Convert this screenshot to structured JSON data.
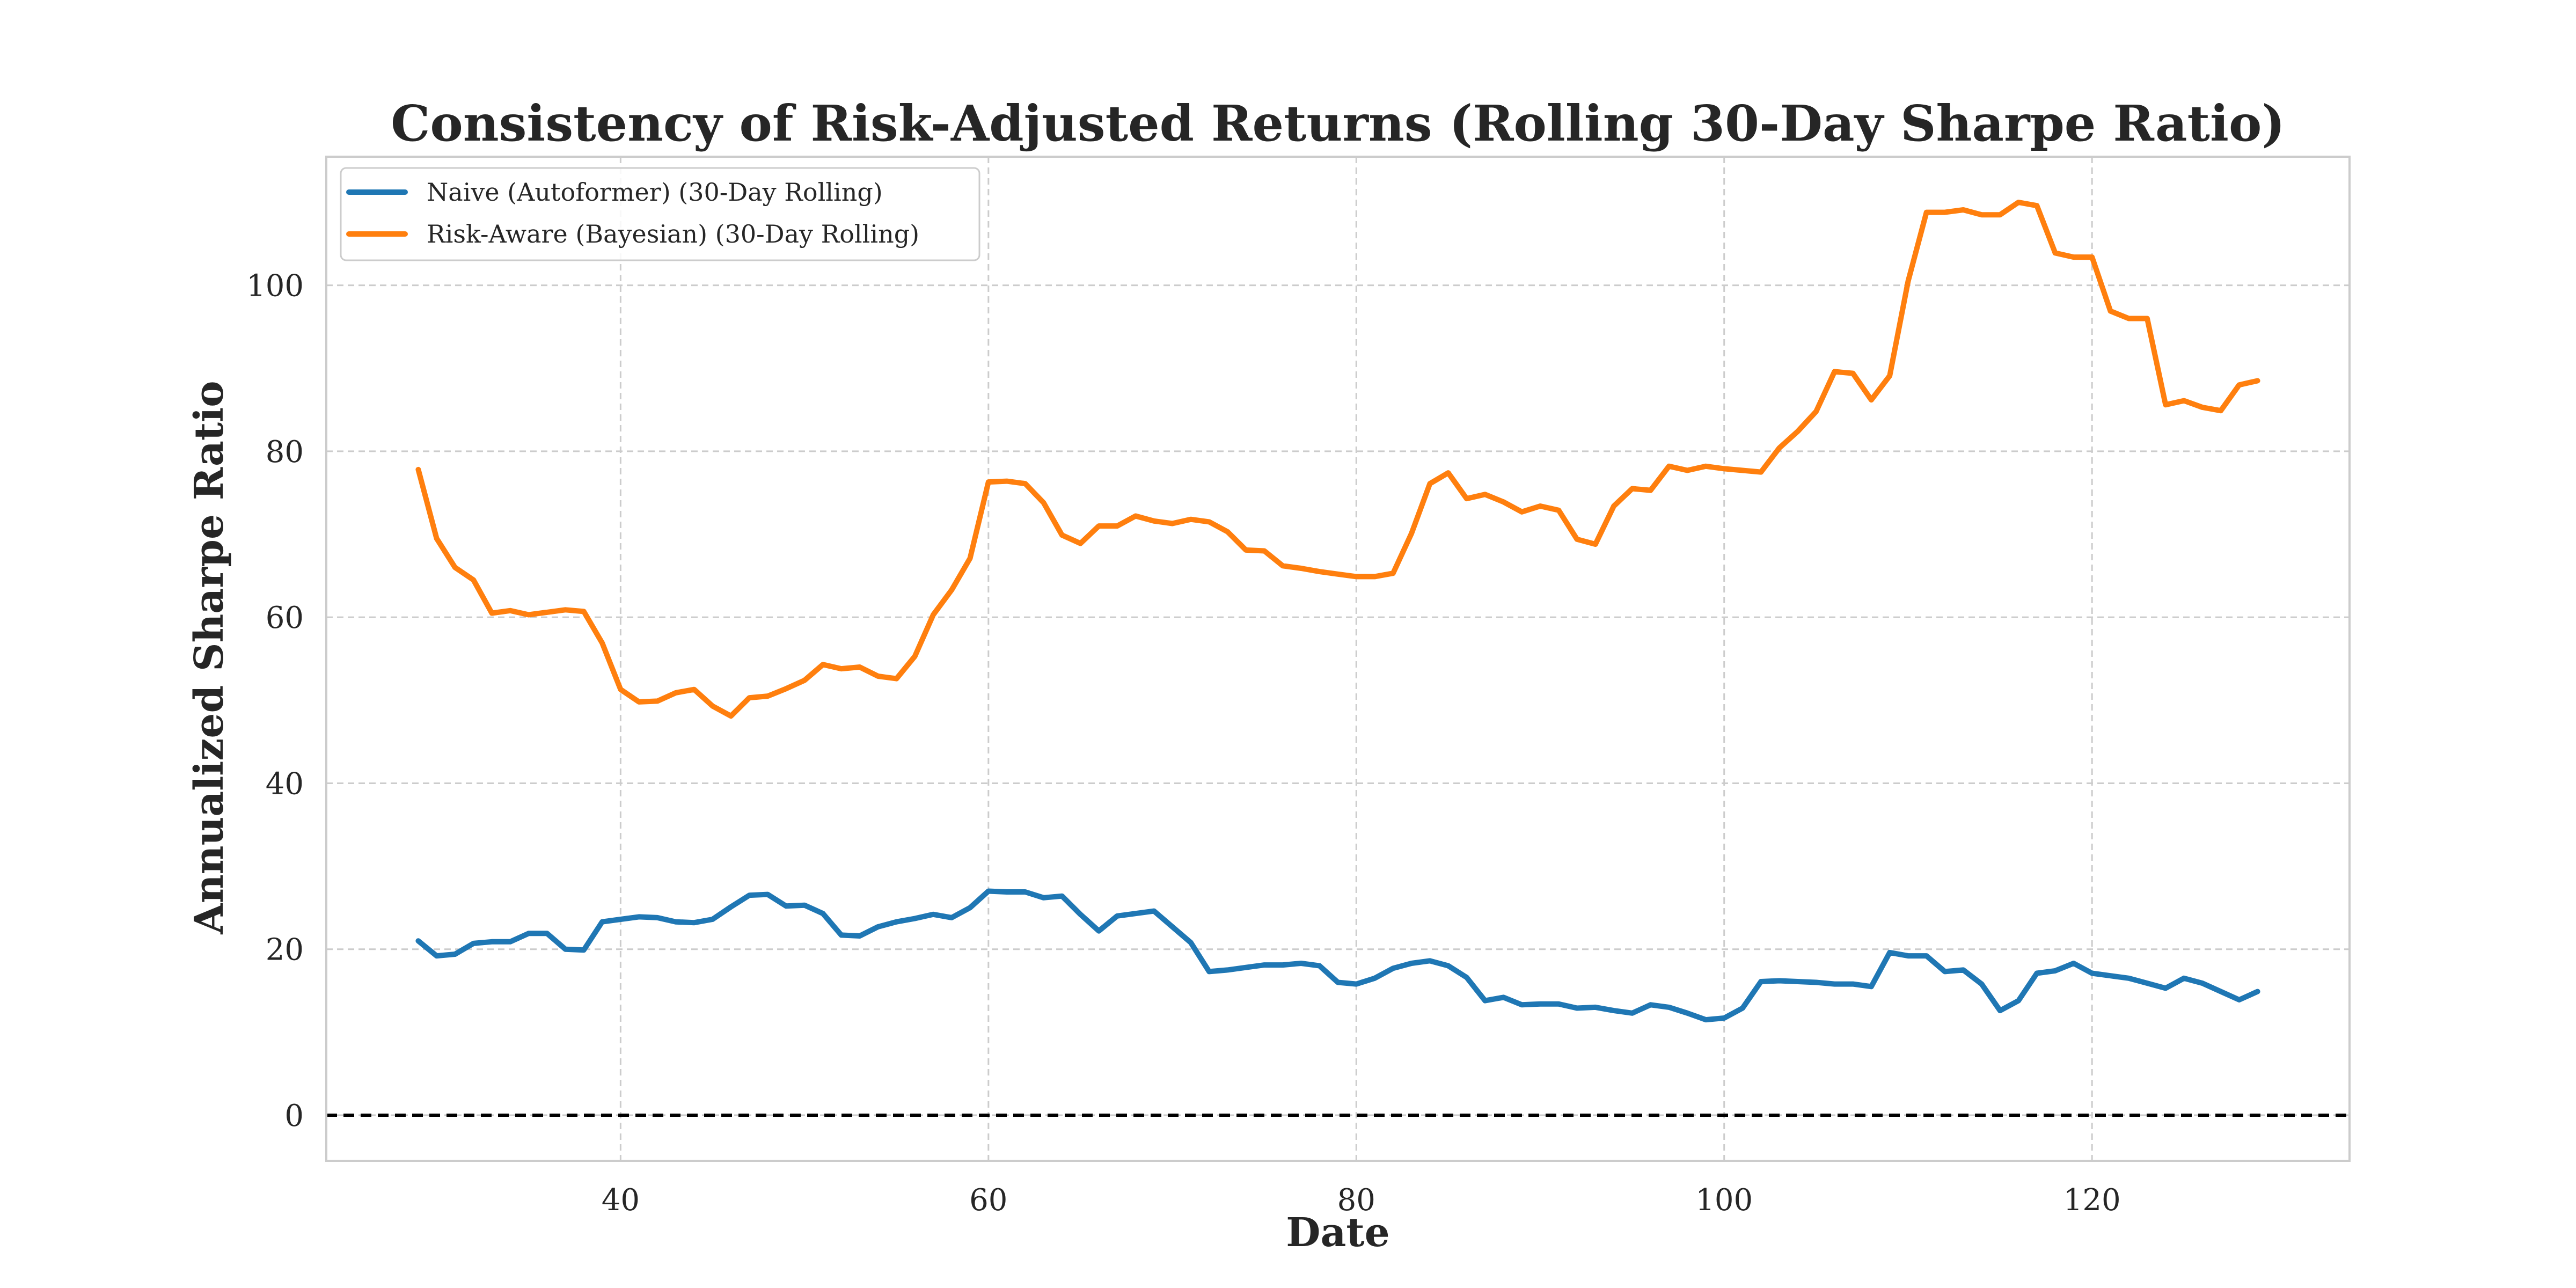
{
  "chart_data": {
    "type": "line",
    "title": "Consistency of Risk-Adjusted Returns (Rolling 30-Day Sharpe Ratio)",
    "xlabel": "Date",
    "ylabel": "Annualized Sharpe Ratio",
    "xlim": [
      24,
      134
    ],
    "ylim": [
      -5.5,
      115.5
    ],
    "xticks": [
      40,
      60,
      80,
      100,
      120
    ],
    "yticks": [
      0,
      20,
      40,
      60,
      80,
      100
    ],
    "grid": true,
    "legend_position": "top-left",
    "reference_line": {
      "y": 0,
      "style": "dashed",
      "color": "#000000"
    },
    "x": [
      29,
      30,
      31,
      32,
      33,
      34,
      35,
      36,
      37,
      38,
      39,
      40,
      41,
      42,
      43,
      44,
      45,
      46,
      47,
      48,
      49,
      50,
      51,
      52,
      53,
      54,
      55,
      56,
      57,
      58,
      59,
      60,
      61,
      62,
      63,
      64,
      65,
      66,
      67,
      68,
      69,
      70,
      71,
      72,
      73,
      74,
      75,
      76,
      77,
      78,
      79,
      80,
      81,
      82,
      83,
      84,
      85,
      86,
      87,
      88,
      89,
      90,
      91,
      92,
      93,
      94,
      95,
      96,
      97,
      98,
      99,
      100,
      101,
      102,
      103,
      104,
      105,
      106,
      107,
      108,
      109,
      110,
      111,
      112,
      113,
      114,
      115,
      116,
      117,
      118,
      119,
      120,
      121,
      122,
      123,
      124,
      125,
      126,
      127,
      128,
      129
    ],
    "series": [
      {
        "name": "Naive (Autoformer) (30-Day Rolling)",
        "color": "#1f77b4",
        "values": [
          21.0,
          19.2,
          19.4,
          20.7,
          20.9,
          20.9,
          21.9,
          21.9,
          20.0,
          19.9,
          23.3,
          23.6,
          23.9,
          23.8,
          23.3,
          23.2,
          23.6,
          25.1,
          26.5,
          26.6,
          25.2,
          25.3,
          24.3,
          21.7,
          21.6,
          22.7,
          23.3,
          23.7,
          24.2,
          23.8,
          25.0,
          27.0,
          26.9,
          26.9,
          26.2,
          26.4,
          24.2,
          22.2,
          24.0,
          24.3,
          24.6,
          22.7,
          20.8,
          17.3,
          17.5,
          17.8,
          18.1,
          18.1,
          18.3,
          18.0,
          16.0,
          15.8,
          16.5,
          17.7,
          18.3,
          18.6,
          18.0,
          16.6,
          13.8,
          14.2,
          13.3,
          13.4,
          13.4,
          12.9,
          13.0,
          12.6,
          12.3,
          13.3,
          13.0,
          12.3,
          11.5,
          11.7,
          12.9,
          16.1,
          16.2,
          16.1,
          16.0,
          15.8,
          15.8,
          15.5,
          19.6,
          19.2,
          19.2,
          17.3,
          17.5,
          15.8,
          12.6,
          13.8,
          17.1,
          17.4,
          18.3,
          17.1,
          16.8,
          16.5,
          15.9,
          15.3,
          16.5,
          15.9,
          14.9,
          13.9,
          14.9
        ]
      },
      {
        "name": "Risk-Aware (Bayesian) (30-Day Rolling)",
        "color": "#ff7f0e",
        "values": [
          77.8,
          69.5,
          66.0,
          64.5,
          60.5,
          60.8,
          60.3,
          60.6,
          60.9,
          60.7,
          56.9,
          51.3,
          49.8,
          49.9,
          50.9,
          51.3,
          49.3,
          48.1,
          50.3,
          50.5,
          51.4,
          52.4,
          54.3,
          53.8,
          54.0,
          52.9,
          52.6,
          55.3,
          60.3,
          63.3,
          67.1,
          76.3,
          76.4,
          76.1,
          73.8,
          69.9,
          68.9,
          71.0,
          71.0,
          72.2,
          71.6,
          71.3,
          71.8,
          71.5,
          70.3,
          68.1,
          68.0,
          66.2,
          65.9,
          65.5,
          65.2,
          64.9,
          64.9,
          65.3,
          70.1,
          76.1,
          77.4,
          74.3,
          74.8,
          73.9,
          72.7,
          73.4,
          72.9,
          69.4,
          68.8,
          73.4,
          75.5,
          75.3,
          78.2,
          77.7,
          78.2,
          77.9,
          77.7,
          77.5,
          80.4,
          82.4,
          84.8,
          89.6,
          89.4,
          86.2,
          89.1,
          100.5,
          108.8,
          108.8,
          109.1,
          108.5,
          108.5,
          110.0,
          109.6,
          103.9,
          103.4,
          103.4,
          96.9,
          96.0,
          96.0,
          85.6,
          86.1,
          85.3,
          84.9,
          88.0,
          88.5
        ]
      }
    ]
  }
}
